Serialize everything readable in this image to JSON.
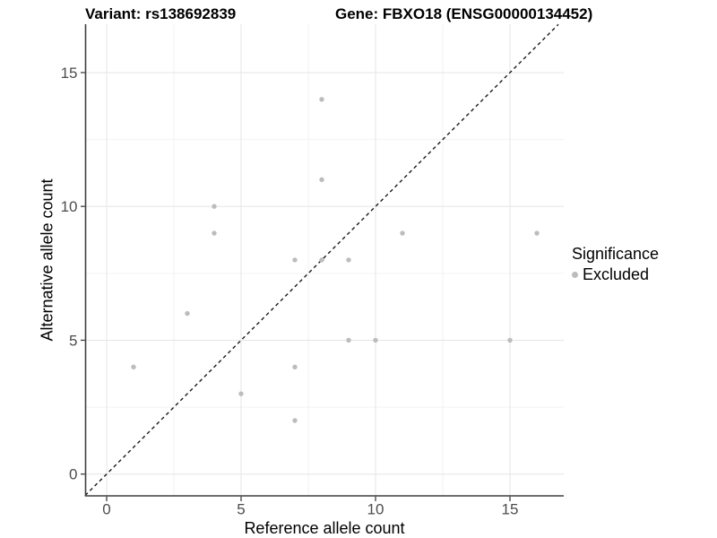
{
  "header": {
    "variant_title": "Variant: rs138692839",
    "gene_title": "Gene: FBXO18 (ENSG00000134452)"
  },
  "chart_data": {
    "type": "scatter",
    "title": "Variant: rs138692839   Gene: FBXO18 (ENSG00000134452)",
    "xlabel": "Reference allele count",
    "ylabel": "Alternative allele count",
    "xlim": [
      -0.8,
      17.0
    ],
    "ylim": [
      -0.8,
      16.8
    ],
    "xticks": [
      0,
      5,
      10,
      15
    ],
    "yticks": [
      0,
      5,
      10,
      15
    ],
    "x_minor_gridlines": [
      2.5,
      7.5,
      12.5
    ],
    "y_minor_gridlines": [
      2.5,
      7.5,
      12.5
    ],
    "grid": true,
    "reference_line": {
      "equation": "y = x",
      "style": "dashed",
      "color": "#1a1a1a"
    },
    "series": [
      {
        "name": "Excluded",
        "color": "#bcbcbc",
        "points": [
          [
            1,
            4
          ],
          [
            3,
            6
          ],
          [
            4,
            9
          ],
          [
            4,
            10
          ],
          [
            5,
            3
          ],
          [
            7,
            2
          ],
          [
            7,
            4
          ],
          [
            7,
            8
          ],
          [
            8,
            8
          ],
          [
            8,
            11
          ],
          [
            8,
            14
          ],
          [
            9,
            5
          ],
          [
            9,
            8
          ],
          [
            10,
            5
          ],
          [
            11,
            9
          ],
          [
            15,
            5
          ],
          [
            16,
            9
          ]
        ]
      }
    ],
    "legend": {
      "title": "Significance",
      "entries": [
        "Excluded"
      ],
      "position": "right"
    }
  },
  "colors": {
    "point": "#bcbcbc",
    "axis_line": "#3f3f3f",
    "tick_label": "#4d4d4d",
    "grid_major": "#e6e6e6",
    "grid_minor": "#f2f2f2",
    "diagonal_line": "#1a1a1a",
    "background": "#ffffff"
  }
}
